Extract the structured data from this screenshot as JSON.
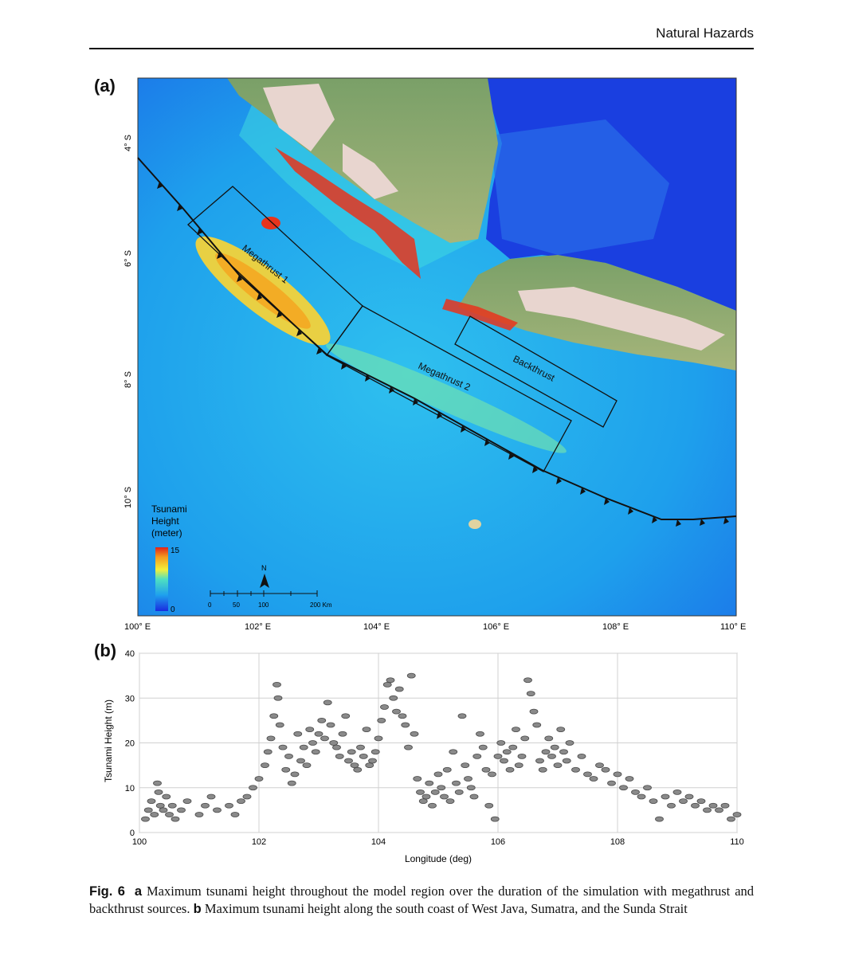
{
  "header": {
    "journal": "Natural Hazards"
  },
  "panel_a": {
    "label": "(a)",
    "lat_ticks": [
      "4° S",
      "6° S",
      "8° S",
      "10° S"
    ],
    "lon_ticks": [
      "100° E",
      "102° E",
      "104° E",
      "106° E",
      "108° E",
      "110° E"
    ],
    "sources": {
      "megathrust1": "Megathrust 1",
      "megathrust2": "Megathrust 2",
      "backthrust": "Backthrust"
    },
    "legend": {
      "title_line1": "Tsunami",
      "title_line2": "Height",
      "title_line3": "(meter)",
      "max": "15",
      "min": "0"
    },
    "scale_bar": {
      "north": "N",
      "labels": [
        "0",
        "50",
        "100",
        "200 Km"
      ]
    }
  },
  "panel_b": {
    "label": "(b)"
  },
  "chart_data": {
    "type": "scatter",
    "xlabel": "Longitude (deg)",
    "ylabel": "Tsunami Height (m)",
    "xlim": [
      100,
      110
    ],
    "ylim": [
      0,
      40
    ],
    "xticks": [
      "100",
      "102",
      "104",
      "106",
      "108",
      "110"
    ],
    "yticks": [
      "0",
      "10",
      "20",
      "30",
      "40"
    ],
    "grid": true,
    "points": [
      [
        100.1,
        3
      ],
      [
        100.15,
        5
      ],
      [
        100.2,
        7
      ],
      [
        100.25,
        4
      ],
      [
        100.3,
        11
      ],
      [
        100.32,
        9
      ],
      [
        100.35,
        6
      ],
      [
        100.4,
        5
      ],
      [
        100.45,
        8
      ],
      [
        100.5,
        4
      ],
      [
        100.55,
        6
      ],
      [
        100.6,
        3
      ],
      [
        100.7,
        5
      ],
      [
        100.8,
        7
      ],
      [
        101.0,
        4
      ],
      [
        101.1,
        6
      ],
      [
        101.2,
        8
      ],
      [
        101.3,
        5
      ],
      [
        101.5,
        6
      ],
      [
        101.6,
        4
      ],
      [
        101.7,
        7
      ],
      [
        101.8,
        8
      ],
      [
        101.9,
        10
      ],
      [
        102.0,
        12
      ],
      [
        102.1,
        15
      ],
      [
        102.15,
        18
      ],
      [
        102.2,
        21
      ],
      [
        102.25,
        26
      ],
      [
        102.3,
        33
      ],
      [
        102.32,
        30
      ],
      [
        102.35,
        24
      ],
      [
        102.4,
        19
      ],
      [
        102.45,
        14
      ],
      [
        102.5,
        17
      ],
      [
        102.55,
        11
      ],
      [
        102.6,
        13
      ],
      [
        102.65,
        22
      ],
      [
        102.7,
        16
      ],
      [
        102.75,
        19
      ],
      [
        102.8,
        15
      ],
      [
        102.85,
        23
      ],
      [
        102.9,
        20
      ],
      [
        102.95,
        18
      ],
      [
        103.0,
        22
      ],
      [
        103.05,
        25
      ],
      [
        103.1,
        21
      ],
      [
        103.15,
        29
      ],
      [
        103.2,
        24
      ],
      [
        103.25,
        20
      ],
      [
        103.3,
        19
      ],
      [
        103.35,
        17
      ],
      [
        103.4,
        22
      ],
      [
        103.45,
        26
      ],
      [
        103.5,
        16
      ],
      [
        103.55,
        18
      ],
      [
        103.6,
        15
      ],
      [
        103.65,
        14
      ],
      [
        103.7,
        19
      ],
      [
        103.75,
        17
      ],
      [
        103.8,
        23
      ],
      [
        103.85,
        15
      ],
      [
        103.9,
        16
      ],
      [
        103.95,
        18
      ],
      [
        104.0,
        21
      ],
      [
        104.05,
        25
      ],
      [
        104.1,
        28
      ],
      [
        104.15,
        33
      ],
      [
        104.2,
        34
      ],
      [
        104.25,
        30
      ],
      [
        104.3,
        27
      ],
      [
        104.35,
        32
      ],
      [
        104.4,
        26
      ],
      [
        104.45,
        24
      ],
      [
        104.5,
        19
      ],
      [
        104.55,
        35
      ],
      [
        104.6,
        22
      ],
      [
        104.65,
        12
      ],
      [
        104.7,
        9
      ],
      [
        104.75,
        7
      ],
      [
        104.8,
        8
      ],
      [
        104.85,
        11
      ],
      [
        104.9,
        6
      ],
      [
        104.95,
        9
      ],
      [
        105.0,
        13
      ],
      [
        105.05,
        10
      ],
      [
        105.1,
        8
      ],
      [
        105.15,
        14
      ],
      [
        105.2,
        7
      ],
      [
        105.25,
        18
      ],
      [
        105.3,
        11
      ],
      [
        105.35,
        9
      ],
      [
        105.4,
        26
      ],
      [
        105.45,
        15
      ],
      [
        105.5,
        12
      ],
      [
        105.55,
        10
      ],
      [
        105.6,
        8
      ],
      [
        105.65,
        17
      ],
      [
        105.7,
        22
      ],
      [
        105.75,
        19
      ],
      [
        105.8,
        14
      ],
      [
        105.85,
        6
      ],
      [
        105.9,
        13
      ],
      [
        105.95,
        3
      ],
      [
        106.0,
        17
      ],
      [
        106.05,
        20
      ],
      [
        106.1,
        16
      ],
      [
        106.15,
        18
      ],
      [
        106.2,
        14
      ],
      [
        106.25,
        19
      ],
      [
        106.3,
        23
      ],
      [
        106.35,
        15
      ],
      [
        106.4,
        17
      ],
      [
        106.45,
        21
      ],
      [
        106.5,
        34
      ],
      [
        106.55,
        31
      ],
      [
        106.6,
        27
      ],
      [
        106.65,
        24
      ],
      [
        106.7,
        16
      ],
      [
        106.75,
        14
      ],
      [
        106.8,
        18
      ],
      [
        106.85,
        21
      ],
      [
        106.9,
        17
      ],
      [
        106.95,
        19
      ],
      [
        107.0,
        15
      ],
      [
        107.05,
        23
      ],
      [
        107.1,
        18
      ],
      [
        107.15,
        16
      ],
      [
        107.2,
        20
      ],
      [
        107.3,
        14
      ],
      [
        107.4,
        17
      ],
      [
        107.5,
        13
      ],
      [
        107.6,
        12
      ],
      [
        107.7,
        15
      ],
      [
        107.8,
        14
      ],
      [
        107.9,
        11
      ],
      [
        108.0,
        13
      ],
      [
        108.1,
        10
      ],
      [
        108.2,
        12
      ],
      [
        108.3,
        9
      ],
      [
        108.4,
        8
      ],
      [
        108.5,
        10
      ],
      [
        108.6,
        7
      ],
      [
        108.7,
        3
      ],
      [
        108.8,
        8
      ],
      [
        108.9,
        6
      ],
      [
        109.0,
        9
      ],
      [
        109.1,
        7
      ],
      [
        109.2,
        8
      ],
      [
        109.3,
        6
      ],
      [
        109.4,
        7
      ],
      [
        109.5,
        5
      ],
      [
        109.6,
        6
      ],
      [
        109.7,
        5
      ],
      [
        109.8,
        6
      ],
      [
        109.9,
        3
      ],
      [
        110.0,
        4
      ]
    ]
  },
  "caption": {
    "fig_label": "Fig. 6",
    "a_label": "a",
    "text_a": "Maximum tsunami height throughout the model region over the duration of the simulation with megathrust and backthrust sources.",
    "b_label": "b",
    "text_b": "Maximum tsunami height along the south coast of West Java, Sumatra, and the Sunda Strait"
  }
}
